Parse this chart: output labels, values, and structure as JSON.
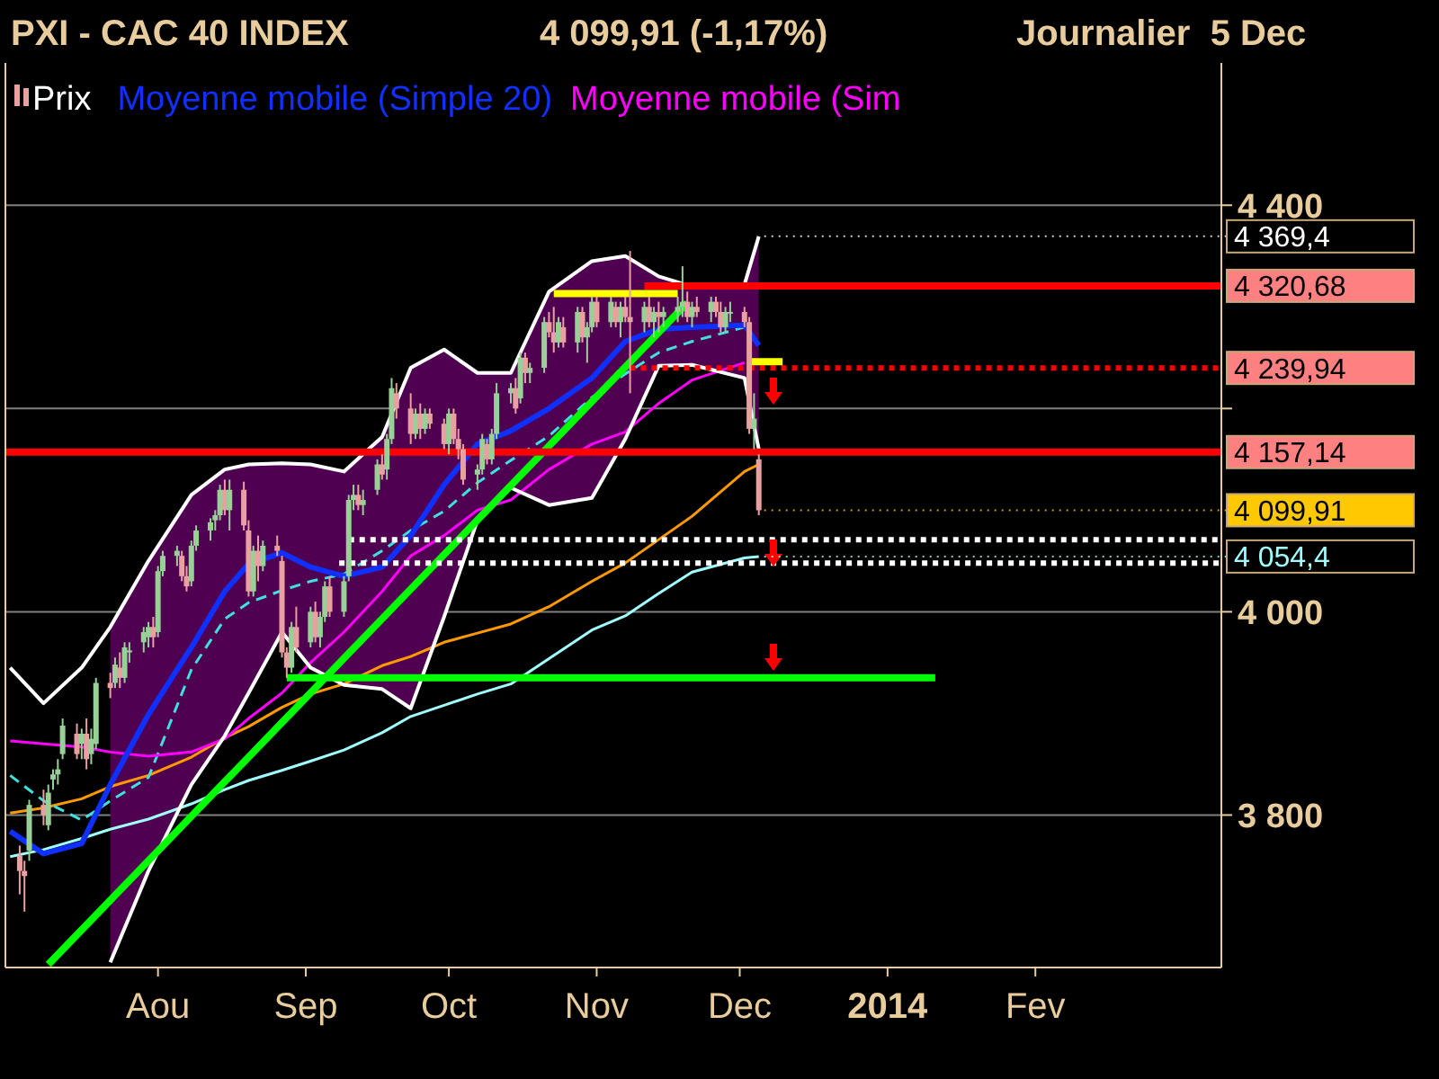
{
  "chart_data": {
    "type": "candlestick",
    "title": "PXI - CAC 40 INDEX",
    "subtitle": "4 099,91 (-1,17%)",
    "annotations": [
      "Journalier  5 Dec",
      {
        "text": "4 369,4",
        "x": "2013-12-05",
        "y": 4369.4
      },
      {
        "text": "4 320,68",
        "x": "2014-03-12",
        "y": 4320.68
      },
      {
        "text": "4 239,94",
        "x": "2014-03-12",
        "y": 4239.94
      },
      {
        "text": "4 157,14",
        "x": "2014-03-12",
        "y": 4157.14
      },
      {
        "text": "4 099,91",
        "x": "2013-12-05",
        "y": 4099.91
      },
      {
        "text": "4 054,4",
        "x": "2013-12-05",
        "y": 4054.4
      }
    ],
    "xlim": [
      "2013-06-30",
      "2014-03-12"
    ],
    "xticks": [
      {
        "value": "2013-08-01",
        "label": "Aou"
      },
      {
        "value": "2013-09-01",
        "label": "Sep"
      },
      {
        "value": "2013-10-01",
        "label": "Oct"
      },
      {
        "value": "2013-11-01",
        "label": "Nov"
      },
      {
        "value": "2013-12-01",
        "label": "Dec"
      },
      {
        "value": "2014-01-01",
        "label": "2014"
      },
      {
        "value": "2014-02-01",
        "label": "Fev"
      }
    ],
    "ylim": [
      3650,
      4540
    ],
    "yticks": [
      {
        "value": 4400,
        "label": "4 400"
      },
      {
        "value": 4200,
        "label": null
      },
      {
        "value": 4000,
        "label": "4 000"
      },
      {
        "value": 3800,
        "label": "3 800"
      }
    ],
    "grid": "y",
    "legend": "top left",
    "series": [
      {
        "type": "line",
        "color": "#a0ffff",
        "x": [
          "2013-07-01",
          "2013-07-08",
          "2013-07-16",
          "2013-07-22",
          "2013-07-30",
          "2013-08-08",
          "2013-08-15",
          "2013-08-20",
          "2013-08-27",
          "2013-09-02",
          "2013-09-09",
          "2013-09-17",
          "2013-09-23",
          "2013-09-30",
          "2013-10-07",
          "2013-10-14",
          "2013-10-22",
          "2013-10-31",
          "2013-11-07",
          "2013-11-14",
          "2013-11-21",
          "2013-12-02",
          "2013-12-05"
        ],
        "values": [
          3759,
          3766,
          3777,
          3786,
          3796,
          3811,
          3825,
          3834,
          3844,
          3853,
          3864,
          3881,
          3897,
          3908,
          3919,
          3929,
          3954,
          3982,
          3996,
          4018,
          4039,
          4053,
          4054.4
        ]
      },
      {
        "type": "line",
        "color": "#ff9900",
        "x": [
          "2013-07-01",
          "2013-07-08",
          "2013-07-16",
          "2013-07-22",
          "2013-07-30",
          "2013-08-08",
          "2013-08-15",
          "2013-08-20",
          "2013-08-27",
          "2013-09-02",
          "2013-09-09",
          "2013-09-17",
          "2013-09-23",
          "2013-09-30",
          "2013-10-07",
          "2013-10-14",
          "2013-10-22",
          "2013-10-31",
          "2013-11-07",
          "2013-11-14",
          "2013-11-21",
          "2013-12-02",
          "2013-12-05"
        ],
        "values": [
          3802,
          3807,
          3816,
          3828,
          3839,
          3857,
          3876,
          3887,
          3906,
          3919,
          3929,
          3947,
          3956,
          3970,
          3979,
          3988,
          4005,
          4030,
          4048,
          4071,
          4094,
          4138,
          4145
        ]
      },
      {
        "type": "line",
        "color": "#40e0e0",
        "line_style": "dashed",
        "x": [
          "2013-07-01",
          "2013-07-08",
          "2013-07-16",
          "2013-07-22",
          "2013-07-30",
          "2013-08-08",
          "2013-08-15",
          "2013-08-20",
          "2013-08-27",
          "2013-09-02",
          "2013-09-09",
          "2013-09-17",
          "2013-09-23",
          "2013-09-30",
          "2013-10-07",
          "2013-10-14",
          "2013-10-22",
          "2013-10-31",
          "2013-11-07",
          "2013-11-14",
          "2013-11-21",
          "2013-12-02"
        ],
        "values": [
          3839,
          3814,
          3795,
          3814,
          3837,
          3943,
          3993,
          4009,
          4021,
          4030,
          4037,
          4060,
          4080,
          4099,
          4127,
          4149,
          4173,
          4211,
          4234,
          4255,
          4266,
          4280
        ]
      },
      {
        "type": "line",
        "name": "Moyenne mobile (Sim",
        "color": "#ff00ff",
        "x": [
          "2013-07-01",
          "2013-07-08",
          "2013-07-16",
          "2013-07-22",
          "2013-07-30",
          "2013-08-08",
          "2013-08-15",
          "2013-08-20",
          "2013-08-27",
          "2013-09-02",
          "2013-09-09",
          "2013-09-17",
          "2013-09-23",
          "2013-09-30",
          "2013-10-07",
          "2013-10-14",
          "2013-10-22",
          "2013-10-31",
          "2013-11-07",
          "2013-11-14",
          "2013-11-21",
          "2013-12-02"
        ],
        "values": [
          3873,
          3870,
          3867,
          3862,
          3858,
          3862,
          3875,
          3895,
          3920,
          3950,
          3980,
          4020,
          4055,
          4075,
          4100,
          4110,
          4140,
          4165,
          4177,
          4205,
          4228,
          4245
        ]
      },
      {
        "type": "line",
        "name": "Moyenne mobile (Simple 20)",
        "color": "#1030ff",
        "x": [
          "2013-07-01",
          "2013-07-08",
          "2013-07-16",
          "2013-07-22",
          "2013-07-30",
          "2013-08-08",
          "2013-08-15",
          "2013-08-20",
          "2013-08-27",
          "2013-09-02",
          "2013-09-09",
          "2013-09-17",
          "2013-09-23",
          "2013-09-30",
          "2013-10-07",
          "2013-10-14",
          "2013-10-22",
          "2013-10-31",
          "2013-11-07",
          "2013-11-14",
          "2013-11-21",
          "2013-12-02",
          "2013-12-05"
        ],
        "values": [
          3784,
          3762,
          3772,
          3830,
          3899,
          3965,
          4020,
          4047,
          4058,
          4044,
          4035,
          4044,
          4075,
          4125,
          4165,
          4178,
          4200,
          4230,
          4266,
          4278,
          4280,
          4282,
          4262
        ],
        "upper": [
          null,
          null,
          null,
          3985,
          4050,
          4115,
          4140,
          4145,
          4146,
          4145,
          4138,
          4172,
          4240,
          4258,
          4235,
          4235,
          4315,
          4345,
          4350,
          4330,
          4320,
          4322,
          4369.4
        ],
        "lower": [
          null,
          null,
          null,
          3655,
          3745,
          3830,
          3878,
          3920,
          3980,
          3945,
          3928,
          3924,
          3905,
          3995,
          4090,
          4122,
          4105,
          4112,
          4170,
          4242,
          4243,
          4230,
          4160
        ]
      },
      {
        "type": "line",
        "color": "#ffffff",
        "x": [
          "2013-07-01",
          "2013-07-08",
          "2013-07-16",
          "2013-07-22",
          "2013-07-30",
          "2013-08-08",
          "2013-08-15",
          "2013-08-20",
          "2013-08-27",
          "2013-09-02",
          "2013-09-09",
          "2013-09-17",
          "2013-09-23",
          "2013-09-30",
          "2013-10-07",
          "2013-10-14",
          "2013-10-22",
          "2013-10-31",
          "2013-11-07",
          "2013-11-14",
          "2013-11-21",
          "2013-12-02",
          "2013-12-05"
        ],
        "values": [
          3945,
          3910,
          3945,
          3985,
          4050,
          4115,
          4140,
          4145,
          4146,
          4145,
          4138,
          4172,
          4240,
          4258,
          4235,
          4235,
          4315,
          4345,
          4350,
          4330,
          4320,
          4322,
          4369.4
        ]
      },
      {
        "type": "line",
        "color": "#ffffff",
        "x": [
          "2013-07-22",
          "2013-07-30",
          "2013-08-08",
          "2013-08-15",
          "2013-08-20",
          "2013-08-27",
          "2013-09-02",
          "2013-09-09",
          "2013-09-17",
          "2013-09-23",
          "2013-09-30",
          "2013-10-07",
          "2013-10-14",
          "2013-10-22",
          "2013-10-31",
          "2013-11-07",
          "2013-11-14",
          "2013-11-21",
          "2013-12-02",
          "2013-12-05"
        ],
        "values": [
          3655,
          3745,
          3830,
          3878,
          3920,
          3980,
          3945,
          3928,
          3924,
          3905,
          3995,
          4090,
          4122,
          4105,
          4112,
          4170,
          4242,
          4243,
          4230,
          4160
        ]
      },
      {
        "type": "line",
        "color": "#00ff00",
        "x": [
          "2013-07-09",
          "2013-11-20"
        ],
        "values": [
          3653,
          4304
        ]
      },
      {
        "type": "line",
        "color": "#00ff00",
        "x": [
          "2013-08-28",
          "2014-01-11"
        ],
        "values": [
          3935,
          3935
        ]
      },
      {
        "type": "line",
        "color": "#ff0000",
        "x": [
          "2013-06-30",
          "2014-03-12"
        ],
        "values": [
          4157.14,
          4157.14
        ]
      },
      {
        "type": "line",
        "color": "#ff0000",
        "x": [
          "2013-11-11",
          "2014-03-12"
        ],
        "values": [
          4320.68,
          4320.68
        ]
      },
      {
        "type": "line",
        "color": "#ff0000",
        "line_style": "dotted",
        "x": [
          "2013-11-08",
          "2014-03-12"
        ],
        "values": [
          4239.94,
          4239.94
        ]
      },
      {
        "type": "line",
        "color": "#ffff00",
        "x": [
          "2013-10-23",
          "2013-11-18"
        ],
        "values": [
          4313,
          4313
        ]
      },
      {
        "type": "line",
        "color": "#ffff00",
        "x": [
          "2013-12-03",
          "2013-12-10"
        ],
        "values": [
          4246,
          4246
        ]
      },
      {
        "type": "line",
        "color": "#ffffff",
        "line_style": "dotted",
        "x": [
          "2013-09-10",
          "2014-03-12"
        ],
        "values": [
          4071,
          4071
        ]
      },
      {
        "type": "line",
        "color": "#ffffff",
        "line_style": "dotted",
        "x": [
          "2013-09-08",
          "2014-03-12"
        ],
        "values": [
          4048,
          4048
        ]
      },
      {
        "name": "Prix",
        "color": "#ffffff",
        "colors": [
          "#e8a0a0",
          "#e8a0a0",
          "#98d098",
          "#e8a0a0",
          "#98d098",
          "#98d098",
          "#98d098",
          "#98d098",
          "#e8a0a0",
          "#98d098",
          "#e8a0a0",
          "#98d098",
          "#98d098",
          "#e8a0a0",
          "#98d098",
          "#e8a0a0",
          "#98d098",
          "#98d098",
          "#98d098",
          "#98d098",
          "#e8a0a0",
          "#98d098",
          "#98d098",
          "#98d098",
          "#e8a0a0",
          "#e8a0a0",
          "#98d098",
          "#98d098",
          "#98d098",
          "#98d098",
          "#98d098",
          "#e8a0a0",
          "#98d098",
          "#e8a0a0",
          "#e8a0a0",
          "#98d098",
          "#e8a0a0",
          "#98d098",
          "#e8a0a0",
          "#e8a0a0",
          "#e8a0a0",
          "#98d098",
          "#e8a0a0",
          "#98d098",
          "#e8a0a0",
          "#98d098",
          "#98d098",
          "#e8a0a0",
          "#98d098",
          "#98d098",
          "#98d098",
          "#e8a0a0",
          "#98d098",
          "#98d098",
          "#e8a0a0",
          "#98d098",
          "#98d098",
          "#e8a0a0",
          "#e8a0a0",
          "#98d098",
          "#e8a0a0",
          "#98d098",
          "#e8a0a0",
          "#e8a0a0",
          "#98d098",
          "#e8a0a0",
          "#e8a0a0",
          "#e8a0a0",
          "#98d098",
          "#98d098",
          "#e8a0a0",
          "#98d098",
          "#98d098",
          "#98d098",
          "#e8a0a0",
          "#98d098",
          "#e8a0a0",
          "#98d098",
          "#98d098",
          "#e8a0a0",
          "#e8a0a0",
          "#98d098",
          "#e8a0a0",
          "#98d098",
          "#e8a0a0",
          "#98d098",
          "#98d098",
          "#e8a0a0",
          "#98d098",
          "#e8a0a0",
          "#98d098",
          "#e8a0a0",
          "#e8a0a0",
          "#98d098",
          "#e8a0a0",
          "#98d098",
          "#e8a0a0",
          "#98d098",
          "#98d098",
          "#98d098",
          "#e8a0a0",
          "#98d098",
          "#e8a0a0",
          "#98d098",
          "#e8a0a0",
          "#e8a0a0",
          "#98d098",
          "#98d098",
          "#e8a0a0",
          "#e8a0a0",
          "#98d098",
          "#e8a0a0"
        ],
        "x": [
          "2013-07-03",
          "2013-07-04",
          "2013-07-05",
          "2013-07-08",
          "2013-07-09",
          "2013-07-10",
          "2013-07-11",
          "2013-07-12",
          "2013-07-15",
          "2013-07-16",
          "2013-07-17",
          "2013-07-18",
          "2013-07-19",
          "2013-07-22",
          "2013-07-23",
          "2013-07-24",
          "2013-07-25",
          "2013-07-26",
          "2013-07-29",
          "2013-07-30",
          "2013-07-31",
          "2013-08-01",
          "2013-08-02",
          "2013-08-05",
          "2013-08-06",
          "2013-08-07",
          "2013-08-08",
          "2013-08-09",
          "2013-08-12",
          "2013-08-13",
          "2013-08-14",
          "2013-08-15",
          "2013-08-16",
          "2013-08-19",
          "2013-08-20",
          "2013-08-21",
          "2013-08-22",
          "2013-08-23",
          "2013-08-26",
          "2013-08-27",
          "2013-08-28",
          "2013-08-29",
          "2013-08-30",
          "2013-09-02",
          "2013-09-03",
          "2013-09-04",
          "2013-09-05",
          "2013-09-06",
          "2013-09-09",
          "2013-09-10",
          "2013-09-11",
          "2013-09-12",
          "2013-09-13",
          "2013-09-16",
          "2013-09-17",
          "2013-09-18",
          "2013-09-19",
          "2013-09-20",
          "2013-09-23",
          "2013-09-24",
          "2013-09-25",
          "2013-09-26",
          "2013-09-27",
          "2013-09-30",
          "2013-10-01",
          "2013-10-02",
          "2013-10-03",
          "2013-10-04",
          "2013-10-07",
          "2013-10-08",
          "2013-10-09",
          "2013-10-10",
          "2013-10-11",
          "2013-10-14",
          "2013-10-15",
          "2013-10-16",
          "2013-10-17",
          "2013-10-18",
          "2013-10-21",
          "2013-10-22",
          "2013-10-23",
          "2013-10-24",
          "2013-10-25",
          "2013-10-28",
          "2013-10-29",
          "2013-10-30",
          "2013-10-31",
          "2013-11-01",
          "2013-11-04",
          "2013-11-05",
          "2013-11-06",
          "2013-11-07",
          "2013-11-08",
          "2013-11-11",
          "2013-11-12",
          "2013-11-13",
          "2013-11-14",
          "2013-11-15",
          "2013-11-18",
          "2013-11-19",
          "2013-11-20",
          "2013-11-21",
          "2013-11-22",
          "2013-11-25",
          "2013-11-26",
          "2013-11-27",
          "2013-11-28",
          "2013-11-29",
          "2013-12-02",
          "2013-12-03",
          "2013-12-04",
          "2013-12-05"
        ],
        "ohlc": [
          [
            3760,
            3770,
            3722,
            3745
          ],
          [
            3745,
            3755,
            3705,
            3740
          ],
          [
            3765,
            3815,
            3755,
            3810
          ],
          [
            3810,
            3825,
            3790,
            3800
          ],
          [
            3790,
            3830,
            3785,
            3822
          ],
          [
            3835,
            3845,
            3825,
            3840
          ],
          [
            3840,
            3855,
            3830,
            3845
          ],
          [
            3860,
            3895,
            3855,
            3888
          ],
          [
            3880,
            3890,
            3855,
            3860
          ],
          [
            3870,
            3885,
            3855,
            3880
          ],
          [
            3880,
            3895,
            3845,
            3855
          ],
          [
            3860,
            3885,
            3850,
            3875
          ],
          [
            3870,
            3935,
            3865,
            3930
          ],
          [
            3930,
            3940,
            3915,
            3925
          ],
          [
            3930,
            3955,
            3925,
            3948
          ],
          [
            3945,
            3960,
            3925,
            3935
          ],
          [
            3935,
            3970,
            3930,
            3965
          ],
          [
            3960,
            3970,
            3950,
            3962
          ],
          [
            3970,
            3985,
            3960,
            3980
          ],
          [
            3975,
            3990,
            3965,
            3985
          ],
          [
            3985,
            3995,
            3965,
            3975
          ],
          [
            3980,
            4045,
            3975,
            4040
          ],
          [
            4040,
            4060,
            4035,
            4055
          ],
          [
            4055,
            4065,
            4045,
            4060
          ],
          [
            4055,
            4060,
            4030,
            4035
          ],
          [
            4035,
            4045,
            4020,
            4025
          ],
          [
            4030,
            4070,
            4025,
            4065
          ],
          [
            4065,
            4085,
            4060,
            4080
          ],
          [
            4080,
            4092,
            4070,
            4088
          ],
          [
            4090,
            4100,
            4080,
            4095
          ],
          [
            4095,
            4125,
            4090,
            4120
          ],
          [
            4120,
            4130,
            4095,
            4100
          ],
          [
            4100,
            4130,
            4080,
            4120
          ],
          [
            4120,
            4128,
            4080,
            4085
          ],
          [
            4080,
            4090,
            4015,
            4020
          ],
          [
            4020,
            4065,
            4015,
            4060
          ],
          [
            4060,
            4075,
            4030,
            4045
          ],
          [
            4045,
            4070,
            4040,
            4065
          ],
          [
            4065,
            4075,
            4055,
            4060
          ],
          [
            4050,
            4055,
            3955,
            3960
          ],
          [
            3960,
            3965,
            3935,
            3945
          ],
          [
            3945,
            3990,
            3940,
            3985
          ],
          [
            3985,
            4005,
            3960,
            3965
          ],
          [
            3970,
            4005,
            3965,
            4000
          ],
          [
            4000,
            4010,
            3970,
            3975
          ],
          [
            3975,
            4000,
            3965,
            3995
          ],
          [
            3995,
            4030,
            3990,
            4025
          ],
          [
            4025,
            4035,
            3995,
            4000
          ],
          [
            4000,
            4035,
            3995,
            4030
          ],
          [
            4035,
            4115,
            4030,
            4110
          ],
          [
            4110,
            4125,
            4100,
            4115
          ],
          [
            4115,
            4125,
            4100,
            4105
          ],
          [
            4105,
            4120,
            4095,
            4110
          ],
          [
            4120,
            4150,
            4115,
            4145
          ],
          [
            4145,
            4155,
            4130,
            4135
          ],
          [
            4140,
            4175,
            4130,
            4170
          ],
          [
            4170,
            4230,
            4165,
            4220
          ],
          [
            4215,
            4225,
            4190,
            4200
          ],
          [
            4200,
            4215,
            4165,
            4175
          ],
          [
            4175,
            4200,
            4170,
            4195
          ],
          [
            4195,
            4205,
            4170,
            4180
          ],
          [
            4180,
            4200,
            4175,
            4195
          ],
          [
            4195,
            4200,
            4180,
            4185
          ],
          [
            4185,
            4190,
            4160,
            4165
          ],
          [
            4165,
            4200,
            4155,
            4195
          ],
          [
            4195,
            4200,
            4165,
            4170
          ],
          [
            4170,
            4180,
            4150,
            4160
          ],
          [
            4160,
            4165,
            4125,
            4130
          ],
          [
            4135,
            4145,
            4120,
            4140
          ],
          [
            4140,
            4175,
            4135,
            4170
          ],
          [
            4165,
            4170,
            4145,
            4150
          ],
          [
            4150,
            4180,
            4145,
            4175
          ],
          [
            4175,
            4225,
            4170,
            4215
          ],
          [
            4215,
            4225,
            4205,
            4220
          ],
          [
            4220,
            4230,
            4195,
            4200
          ],
          [
            4210,
            4255,
            4205,
            4250
          ],
          [
            4250,
            4255,
            4225,
            4235
          ],
          [
            4235,
            4245,
            4225,
            4240
          ],
          [
            4240,
            4290,
            4235,
            4285
          ],
          [
            4285,
            4295,
            4270,
            4275
          ],
          [
            4275,
            4300,
            4255,
            4265
          ],
          [
            4265,
            4290,
            4260,
            4285
          ],
          [
            4280,
            4290,
            4260,
            4265
          ],
          [
            4265,
            4300,
            4255,
            4295
          ],
          [
            4295,
            4300,
            4265,
            4270
          ],
          [
            4270,
            4285,
            4245,
            4280
          ],
          [
            4280,
            4310,
            4275,
            4305
          ],
          [
            4305,
            4310,
            4280,
            4285
          ],
          [
            4285,
            4310,
            4280,
            4305
          ],
          [
            4300,
            4305,
            4280,
            4285
          ],
          [
            4285,
            4305,
            4270,
            4300
          ],
          [
            4300,
            4310,
            4285,
            4290
          ],
          [
            4290,
            4355,
            4215,
            4285
          ],
          [
            4285,
            4305,
            4275,
            4300
          ],
          [
            4300,
            4310,
            4280,
            4285
          ],
          [
            4285,
            4300,
            4270,
            4295
          ],
          [
            4295,
            4305,
            4275,
            4290
          ],
          [
            4290,
            4300,
            4280,
            4295
          ],
          [
            4295,
            4310,
            4285,
            4300
          ],
          [
            4300,
            4340,
            4290,
            4305
          ],
          [
            4305,
            4315,
            4285,
            4290
          ],
          [
            4290,
            4305,
            4280,
            4300
          ],
          [
            4300,
            4310,
            4290,
            4295
          ],
          [
            4295,
            4310,
            4285,
            4305
          ],
          [
            4305,
            4310,
            4290,
            4295
          ],
          [
            4295,
            4305,
            4275,
            4280
          ],
          [
            4280,
            4300,
            4275,
            4295
          ],
          [
            4295,
            4305,
            4285,
            4295
          ],
          [
            4295,
            4300,
            4280,
            4285
          ],
          [
            4285,
            4290,
            4175,
            4180
          ],
          [
            4180,
            4215,
            4160,
            4190
          ],
          [
            4150,
            4155,
            4095,
            4099.91
          ]
        ]
      }
    ]
  }
}
